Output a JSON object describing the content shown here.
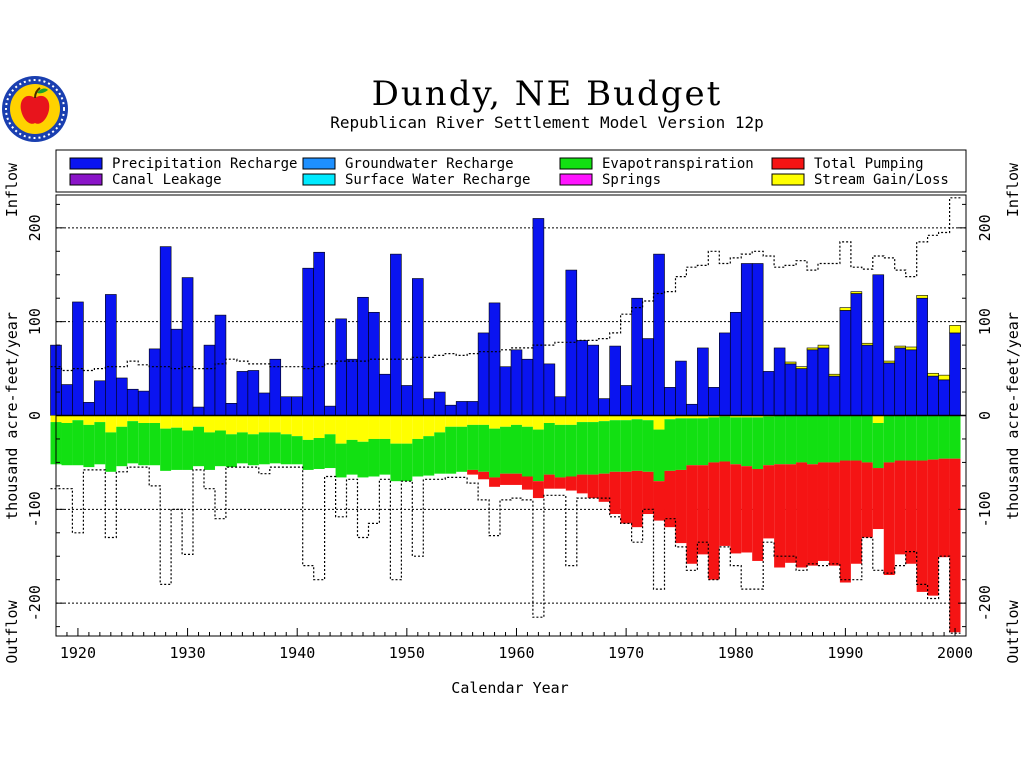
{
  "logo": {
    "icon": "apple-seal-icon",
    "colors": {
      "ring": "#1a3fb0",
      "face": "#ffd200",
      "apple": "#e8141c",
      "leaf": "#1aa02a"
    }
  },
  "chart_data": {
    "type": "bar",
    "title": "Dundy, NE Budget",
    "subtitle": "Republican River Settlement Model Version 12p",
    "xlabel": "Calendar Year",
    "ylabel": "thousand acre-feet/year",
    "ylabel_top": "Inflow",
    "ylabel_bottom": "Outflow",
    "xlim": [
      1918,
      2001
    ],
    "ylim": [
      -235,
      235
    ],
    "xticks": [
      1920,
      1930,
      1940,
      1950,
      1960,
      1970,
      1980,
      1990,
      2000
    ],
    "yticks": [
      -200,
      -100,
      0,
      100,
      200
    ],
    "gridlines": [
      -200,
      -100,
      100,
      200
    ],
    "legend_position": "top",
    "legend": [
      {
        "name": "Precipitation Recharge",
        "color": "#0a14f0"
      },
      {
        "name": "Groundwater Recharge",
        "color": "#1e90ff"
      },
      {
        "name": "Evapotranspiration",
        "color": "#12e012"
      },
      {
        "name": "Total Pumping",
        "color": "#f51414"
      },
      {
        "name": "Canal Leakage",
        "color": "#8a14c8"
      },
      {
        "name": "Surface Water Recharge",
        "color": "#00eaff"
      },
      {
        "name": "Springs",
        "color": "#ff14ff"
      },
      {
        "name": "Stream Gain/Loss",
        "color": "#ffff00"
      }
    ],
    "years": [
      1918,
      1919,
      1920,
      1921,
      1922,
      1923,
      1924,
      1925,
      1926,
      1927,
      1928,
      1929,
      1930,
      1931,
      1932,
      1933,
      1934,
      1935,
      1936,
      1937,
      1938,
      1939,
      1940,
      1941,
      1942,
      1943,
      1944,
      1945,
      1946,
      1947,
      1948,
      1949,
      1950,
      1951,
      1952,
      1953,
      1954,
      1955,
      1956,
      1957,
      1958,
      1959,
      1960,
      1961,
      1962,
      1963,
      1964,
      1965,
      1966,
      1967,
      1968,
      1969,
      1970,
      1971,
      1972,
      1973,
      1974,
      1975,
      1976,
      1977,
      1978,
      1979,
      1980,
      1981,
      1982,
      1983,
      1984,
      1985,
      1986,
      1987,
      1988,
      1989,
      1990,
      1991,
      1992,
      1993,
      1994,
      1995,
      1996,
      1997,
      1998,
      1999,
      2000
    ],
    "precipitation_recharge": [
      75,
      33,
      121,
      14,
      37,
      129,
      40,
      28,
      26,
      71,
      180,
      92,
      147,
      9,
      75,
      107,
      13,
      47,
      48,
      24,
      60,
      20,
      20,
      157,
      174,
      10,
      103,
      60,
      126,
      110,
      44,
      172,
      32,
      146,
      18,
      25,
      11,
      15,
      15,
      88,
      120,
      52,
      70,
      60,
      210,
      55,
      20,
      155,
      80,
      75,
      18,
      74,
      32,
      125,
      82,
      172,
      30,
      58,
      12,
      72,
      30,
      88,
      110,
      162,
      162,
      47,
      72,
      55,
      50,
      70,
      72,
      42,
      112,
      130,
      75,
      150,
      56,
      72,
      70,
      125,
      42,
      38,
      88
    ],
    "groundwater_recharge": [
      0,
      0,
      0,
      0,
      0,
      0,
      0,
      0,
      0,
      0,
      0,
      0,
      0,
      0,
      0,
      0,
      0,
      0,
      0,
      0,
      0,
      0,
      0,
      0,
      0,
      0,
      0,
      0,
      0,
      0,
      0,
      0,
      0,
      0,
      0,
      0,
      0,
      0,
      0,
      0,
      0,
      0,
      0,
      0,
      0,
      0,
      0,
      0,
      0,
      0,
      0,
      0,
      0,
      0,
      0,
      0,
      0,
      0,
      0,
      0,
      0,
      0,
      0,
      0,
      0,
      0,
      0,
      0,
      0,
      0,
      0,
      0,
      0,
      0,
      0,
      0,
      0,
      0,
      0,
      0,
      0,
      0,
      0
    ],
    "_placeholder_note_removed": null,
    "evapotranspiration": [
      -45,
      -45,
      -48,
      -45,
      -45,
      -42,
      -42,
      -45,
      -45,
      -45,
      -45,
      -45,
      -42,
      -42,
      -40,
      -38,
      -35,
      -33,
      -33,
      -34,
      -33,
      -32,
      -30,
      -32,
      -33,
      -36,
      -36,
      -37,
      -38,
      -40,
      -38,
      -40,
      -40,
      -40,
      -42,
      -44,
      -50,
      -48,
      -48,
      -50,
      -52,
      -50,
      -52,
      -53,
      -55,
      -55,
      -56,
      -55,
      -56,
      -56,
      -56,
      -55,
      -55,
      -55,
      -55,
      -55,
      -55,
      -55,
      -50,
      -50,
      -48,
      -48,
      -50,
      -52,
      -55,
      -52,
      -52,
      -52,
      -50,
      -52,
      -50,
      -50,
      -48,
      -48,
      -50,
      -48,
      -50,
      -48,
      -48,
      -48,
      -47,
      -46,
      -46
    ],
    "stream_gain_loss": [
      -7,
      -8,
      -5,
      -10,
      -7,
      -18,
      -12,
      -6,
      -8,
      -8,
      -14,
      -13,
      -16,
      -12,
      -18,
      -16,
      -20,
      -18,
      -20,
      -18,
      -18,
      -20,
      -22,
      -26,
      -24,
      -20,
      -30,
      -26,
      -28,
      -25,
      -25,
      -30,
      -30,
      -25,
      -22,
      -18,
      -12,
      -12,
      -10,
      -10,
      -14,
      -12,
      -10,
      -12,
      -15,
      -8,
      -10,
      -10,
      -7,
      -7,
      -6,
      -5,
      -5,
      -4,
      -5,
      -15,
      -4,
      -3,
      -3,
      -3,
      -2,
      -1,
      -2,
      -2,
      -2,
      -1,
      0,
      2,
      2,
      2,
      3,
      2,
      3,
      2,
      2,
      -8,
      2,
      2,
      3,
      3,
      3,
      5,
      8
    ],
    "total_pumping": [
      0,
      0,
      0,
      0,
      0,
      0,
      0,
      0,
      0,
      0,
      0,
      0,
      0,
      0,
      0,
      0,
      0,
      0,
      0,
      0,
      0,
      0,
      0,
      0,
      0,
      0,
      0,
      0,
      0,
      0,
      0,
      0,
      0,
      0,
      0,
      0,
      0,
      0,
      -5,
      -8,
      -10,
      -12,
      -12,
      -14,
      -18,
      -15,
      -12,
      -15,
      -20,
      -25,
      -30,
      -45,
      -55,
      -60,
      -45,
      -42,
      -60,
      -78,
      -105,
      -95,
      -125,
      -90,
      -95,
      -92,
      -98,
      -78,
      -110,
      -105,
      -112,
      -108,
      -105,
      -110,
      -130,
      -110,
      -80,
      -65,
      -120,
      -100,
      -110,
      -140,
      -145,
      -105,
      -185
    ],
    "dashed_inflow_line": [
      52,
      48,
      50,
      48,
      50,
      52,
      52,
      58,
      54,
      52,
      52,
      50,
      52,
      50,
      50,
      55,
      60,
      58,
      55,
      55,
      52,
      52,
      52,
      50,
      52,
      55,
      58,
      58,
      58,
      60,
      60,
      60,
      60,
      62,
      62,
      64,
      66,
      64,
      66,
      68,
      68,
      70,
      72,
      72,
      75,
      75,
      78,
      78,
      80,
      80,
      82,
      88,
      108,
      115,
      122,
      130,
      132,
      148,
      158,
      160,
      175,
      162,
      168,
      172,
      175,
      170,
      158,
      160,
      165,
      155,
      162,
      162,
      185,
      158,
      156,
      170,
      168,
      155,
      148,
      185,
      192,
      195,
      232
    ],
    "dashed_outflow_line": [
      -78,
      -78,
      -125,
      -58,
      -58,
      -130,
      -60,
      -55,
      -55,
      -75,
      -180,
      -100,
      -148,
      -58,
      -78,
      -110,
      -55,
      -55,
      -55,
      -62,
      -55,
      -55,
      -55,
      -160,
      -175,
      -65,
      -108,
      -68,
      -130,
      -115,
      -68,
      -175,
      -70,
      -150,
      -68,
      -68,
      -66,
      -66,
      -72,
      -90,
      -128,
      -90,
      -88,
      -90,
      -215,
      -85,
      -85,
      -160,
      -88,
      -88,
      -88,
      -108,
      -115,
      -135,
      -100,
      -185,
      -110,
      -140,
      -165,
      -135,
      -175,
      -140,
      -160,
      -185,
      -185,
      -135,
      -150,
      -150,
      -165,
      -158,
      -160,
      -158,
      -175,
      -175,
      -130,
      -165,
      -168,
      -160,
      -145,
      -180,
      -195,
      -150,
      -232
    ]
  }
}
